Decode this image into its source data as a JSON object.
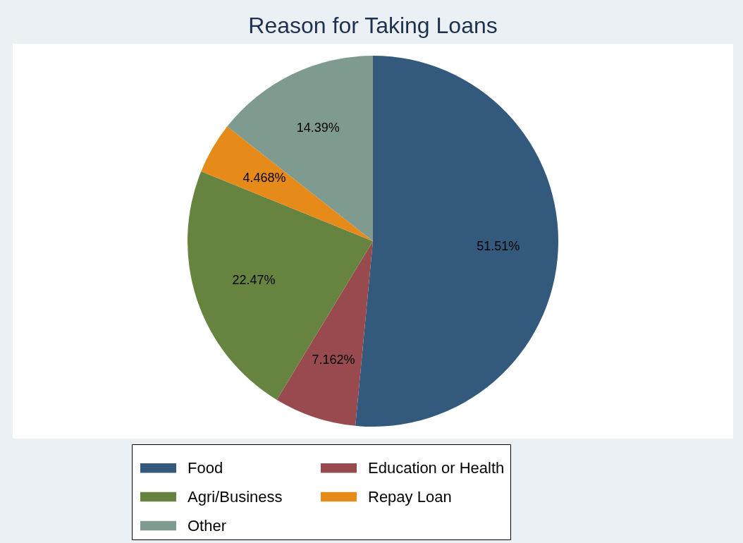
{
  "chart_data": {
    "type": "pie",
    "title": "Reason for Taking Loans",
    "categories": [
      "Food",
      "Education or Health",
      "Agri/Business",
      "Repay Loan",
      "Other"
    ],
    "values": [
      51.51,
      7.162,
      22.47,
      4.468,
      14.39
    ],
    "value_labels": [
      "51.51%",
      "7.162%",
      "22.47%",
      "4.468%",
      "14.39%"
    ],
    "colors": [
      "#335a7d",
      "#984a4f",
      "#66843f",
      "#e68a1a",
      "#7f9a8e"
    ],
    "legend": "bottom"
  }
}
